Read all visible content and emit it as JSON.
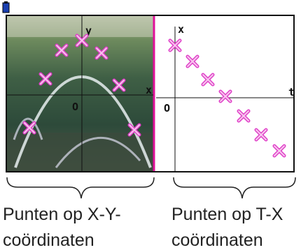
{
  "left_plot": {
    "y_label": "y",
    "x_label": "x",
    "origin": "O"
  },
  "right_plot": {
    "y_label": "x",
    "x_label": "t",
    "origin": "O"
  },
  "captions": [
    {
      "line1": "Punten op X-Y-",
      "line2": "coördinaten"
    },
    {
      "line1": "Punten op T-X",
      "line2": "coördinaten"
    }
  ]
}
